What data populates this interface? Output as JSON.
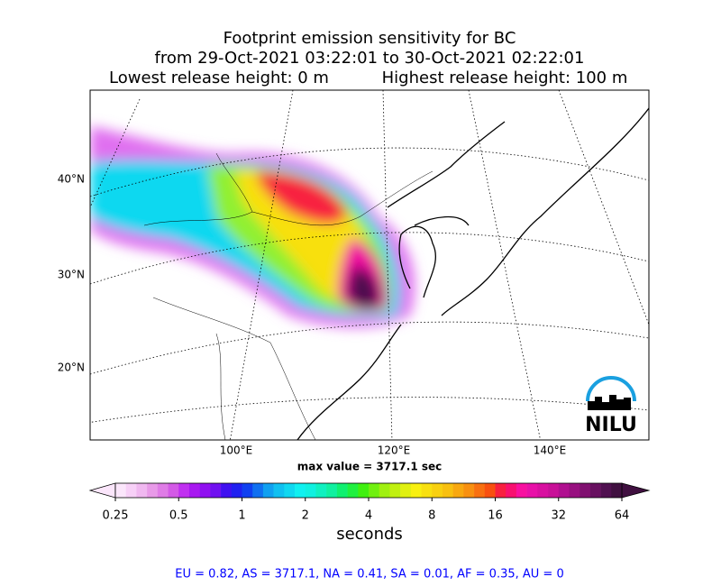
{
  "title": {
    "line1": "Footprint emission sensitivity for BC",
    "line2": "from 29-Oct-2021 03:22:01 to 30-Oct-2021 02:22:01",
    "lowest": "Lowest release height: 0 m",
    "highest": "Highest release height: 100 m"
  },
  "map": {
    "lat_labels": [
      "40°N",
      "30°N",
      "20°N"
    ],
    "lon_labels": [
      "100°E",
      "120°E",
      "140°E"
    ],
    "max_value_label": "max value = 3717.1 sec",
    "logo": "NILU"
  },
  "colorbar": {
    "ticks": [
      0.25,
      0.5,
      1,
      2,
      4,
      8,
      16,
      32,
      64
    ],
    "label": "seconds",
    "log_scale": true,
    "colors": [
      "#fbe6fb",
      "#f7d0f7",
      "#f0b8f0",
      "#e89ae8",
      "#df7ce6",
      "#d35ae6",
      "#c030f0",
      "#a818f0",
      "#9010f0",
      "#7010f0",
      "#4010f0",
      "#2020f0",
      "#1040f0",
      "#1070f0",
      "#10a0f0",
      "#10c0f0",
      "#10d8f0",
      "#10f0f0",
      "#10f0e0",
      "#10f0c0",
      "#10f0a0",
      "#10f070",
      "#20f040",
      "#40f010",
      "#70f010",
      "#a0f010",
      "#c0f010",
      "#e0f010",
      "#f8f010",
      "#f8e010",
      "#f8d010",
      "#f8c010",
      "#f8a810",
      "#f89010",
      "#f87010",
      "#f85010",
      "#f82040",
      "#f81070",
      "#f810a0",
      "#e810a8",
      "#d810a0",
      "#c81098",
      "#b01090",
      "#981080",
      "#801070",
      "#681060",
      "#501050",
      "#401040"
    ]
  },
  "footer": "EU = 0.82,  AS = 3717.1,  NA = 0.41,  SA = 0.01,  AF = 0.35,  AU = 0"
}
